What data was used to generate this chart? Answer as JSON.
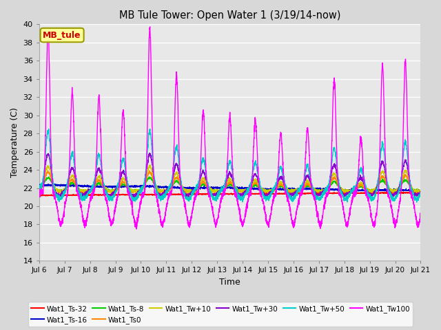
{
  "title": "MB Tule Tower: Open Water 1 (3/19/14-now)",
  "xlabel": "Time",
  "ylabel": "Temperature (C)",
  "ylim": [
    14,
    40
  ],
  "yticks": [
    14,
    16,
    18,
    20,
    22,
    24,
    26,
    28,
    30,
    32,
    34,
    36,
    38,
    40
  ],
  "xlim_days": [
    0,
    15
  ],
  "xtick_labels": [
    "Jul 6",
    "Jul 7",
    "Jul 8",
    "Jul 9",
    "Jul 10",
    "Jul 11",
    "Jul 12",
    "Jul 13",
    "Jul 14",
    "Jul 15",
    "Jul 16",
    "Jul 17",
    "Jul 18",
    "Jul 19",
    "Jul 20",
    "Jul 21"
  ],
  "series_colors": {
    "Wat1_Ts-32": "#ff0000",
    "Wat1_Ts-16": "#0000cc",
    "Wat1_Ts-8": "#00cc00",
    "Wat1_Ts0": "#ff8800",
    "Wat1_Tw+10": "#cccc00",
    "Wat1_Tw+30": "#8800cc",
    "Wat1_Tw+50": "#00cccc",
    "Wat1_Tw100": "#ff00ff"
  },
  "legend_box_color": "#ffff99",
  "legend_box_text": "MB_tule",
  "legend_box_text_color": "#cc0000",
  "fig_bg_color": "#d8d8d8",
  "plot_bg_color": "#e8e8e8"
}
